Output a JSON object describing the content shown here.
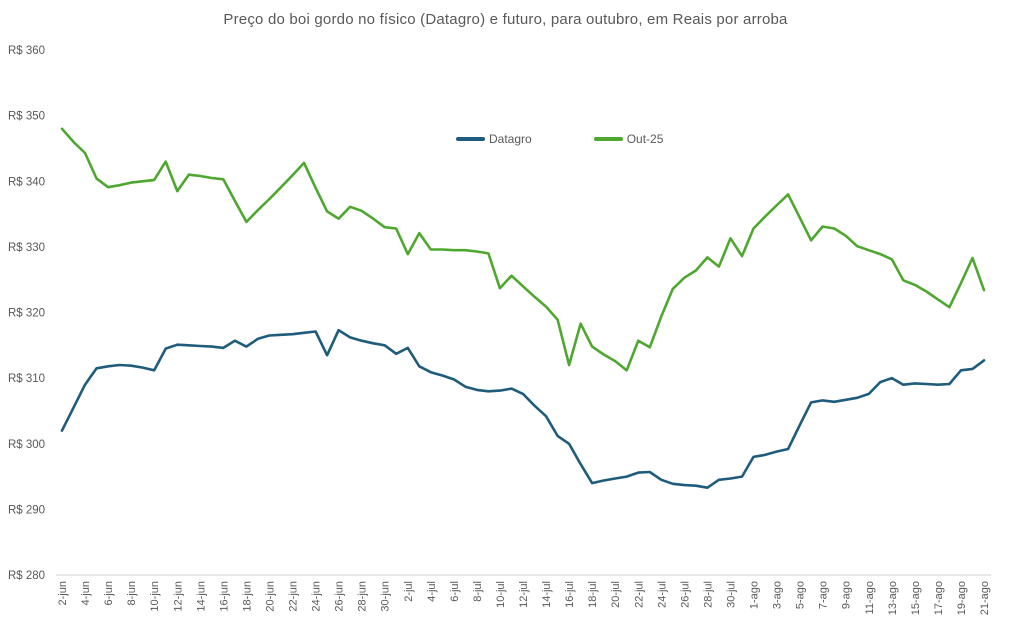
{
  "chart_data": {
    "type": "line",
    "title": "Preço do boi gordo no físico (Datagro) e futuro, para outubro, em Reais por arroba",
    "xlabel": "",
    "ylabel": "",
    "grid": false,
    "background_color": "#ffffff",
    "text_color": "#595959",
    "axis_line_color": "#d9d9d9",
    "legend": {
      "position": "top-center",
      "entries": [
        "Datagro",
        "Out-25"
      ]
    },
    "y_axis": {
      "min": 280,
      "max": 360,
      "step": 10,
      "tick_prefix": "R$ ",
      "tick_labels": [
        "R$ 360",
        "R$ 350",
        "R$ 340",
        "R$ 330",
        "R$ 320",
        "R$ 310",
        "R$ 300",
        "R$ 290",
        "R$ 280"
      ]
    },
    "x_axis": {
      "label_every": 2,
      "label_rotation": -90,
      "first_label": "2-jun",
      "last_label": "21-ago"
    },
    "categories": [
      "2-jun",
      "3-jun",
      "4-jun",
      "5-jun",
      "6-jun",
      "7-jun",
      "8-jun",
      "9-jun",
      "10-jun",
      "11-jun",
      "12-jun",
      "13-jun",
      "14-jun",
      "15-jun",
      "16-jun",
      "17-jun",
      "18-jun",
      "19-jun",
      "20-jun",
      "21-jun",
      "22-jun",
      "23-jun",
      "24-jun",
      "25-jun",
      "26-jun",
      "27-jun",
      "28-jun",
      "29-jun",
      "30-jun",
      "1-jul",
      "2-jul",
      "3-jul",
      "4-jul",
      "5-jul",
      "6-jul",
      "7-jul",
      "8-jul",
      "9-jul",
      "10-jul",
      "11-jul",
      "12-jul",
      "13-jul",
      "14-jul",
      "15-jul",
      "16-jul",
      "17-jul",
      "18-jul",
      "19-jul",
      "20-jul",
      "21-jul",
      "22-jul",
      "23-jul",
      "24-jul",
      "25-jul",
      "26-jul",
      "27-jul",
      "28-jul",
      "29-jul",
      "30-jul",
      "31-jul",
      "1-ago",
      "2-ago",
      "3-ago",
      "4-ago",
      "5-ago",
      "6-ago",
      "7-ago",
      "8-ago",
      "9-ago",
      "10-ago",
      "11-ago",
      "12-ago",
      "13-ago",
      "14-ago",
      "15-ago",
      "16-ago",
      "17-ago",
      "18-ago",
      "19-ago",
      "20-ago",
      "21-ago"
    ],
    "series": [
      {
        "name": "Datagro",
        "color": "#1f5c7c",
        "values": [
          302,
          305.5,
          309,
          311.5,
          311.8,
          312,
          311.9,
          311.6,
          311.2,
          314.5,
          315.1,
          315,
          314.9,
          314.8,
          314.6,
          315.7,
          314.8,
          316,
          316.5,
          316.6,
          316.7,
          316.9,
          317.1,
          313.5,
          317.3,
          316.2,
          315.7,
          315.3,
          315,
          313.7,
          314.6,
          311.8,
          310.9,
          310.4,
          309.8,
          308.7,
          308.2,
          308,
          308.1,
          308.4,
          307.6,
          305.8,
          304.2,
          301.2,
          300,
          296.9,
          294,
          294.4,
          294.7,
          295,
          295.6,
          295.7,
          294.5,
          293.9,
          293.7,
          293.6,
          293.3,
          294.5,
          294.7,
          295,
          298,
          298.3,
          298.8,
          299.2,
          302.8,
          306.3,
          306.6,
          306.4,
          306.7,
          307,
          307.6,
          309.4,
          310,
          309,
          309.2,
          309.1,
          309,
          309.1,
          311.2,
          311.4,
          312.7
        ]
      },
      {
        "name": "Out-25",
        "color": "#4ea72e",
        "values": [
          348,
          346,
          344.3,
          340.4,
          339.1,
          339.4,
          339.8,
          340,
          340.2,
          343,
          338.5,
          341,
          340.8,
          340.5,
          340.3,
          337,
          333.8,
          335.6,
          337.3,
          339.1,
          340.9,
          342.8,
          339,
          335.4,
          334.3,
          336.1,
          335.5,
          334.3,
          333,
          332.8,
          328.9,
          332.1,
          329.6,
          329.6,
          329.5,
          329.5,
          329.3,
          329,
          323.7,
          325.6,
          324,
          322.4,
          320.9,
          318.9,
          312,
          318.3,
          314.8,
          313.6,
          312.6,
          311.2,
          315.7,
          314.7,
          319.4,
          323.6,
          325.3,
          326.4,
          328.4,
          327,
          331.3,
          328.6,
          332.8,
          334.6,
          336.3,
          338,
          334.5,
          331,
          333.1,
          332.8,
          331.7,
          330.1,
          329.5,
          328.9,
          328.1,
          324.9,
          324.2,
          323.2,
          322,
          320.8,
          324.5,
          328.3,
          323.4
        ]
      }
    ]
  }
}
